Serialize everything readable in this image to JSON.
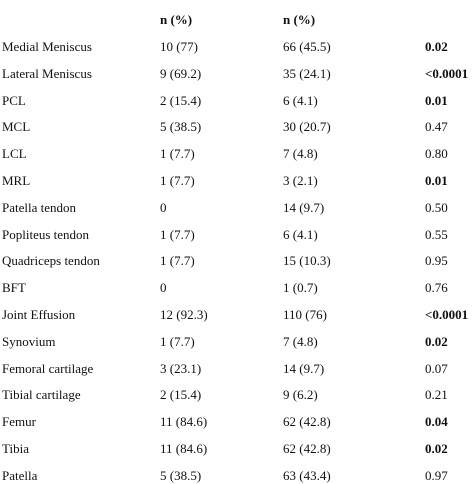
{
  "table": {
    "header": [
      "n (%)",
      "n (%)"
    ],
    "rows": [
      {
        "cells": [
          "Medial Meniscus",
          "10 (77)",
          "66 (45.5)",
          "0.02"
        ],
        "p_bold": true
      },
      {
        "cells": [
          "Lateral Meniscus",
          "9 (69.2)",
          "35 (24.1)",
          "<0.0001"
        ],
        "p_bold": true
      },
      {
        "cells": [
          "PCL",
          "2 (15.4)",
          "6 (4.1)",
          "0.01"
        ],
        "p_bold": true
      },
      {
        "cells": [
          "MCL",
          "5 (38.5)",
          "30 (20.7)",
          "0.47"
        ],
        "p_bold": false
      },
      {
        "cells": [
          "LCL",
          "1 (7.7)",
          "7 (4.8)",
          "0.80"
        ],
        "p_bold": false
      },
      {
        "cells": [
          "MRL",
          "1 (7.7)",
          "3 (2.1)",
          "0.01"
        ],
        "p_bold": true
      },
      {
        "cells": [
          "Patella tendon",
          "0",
          "14 (9.7)",
          "0.50"
        ],
        "p_bold": false
      },
      {
        "cells": [
          "Popliteus tendon",
          "1 (7.7)",
          "6 (4.1)",
          "0.55"
        ],
        "p_bold": false
      },
      {
        "cells": [
          "Quadriceps tendon",
          "1 (7.7)",
          "15 (10.3)",
          "0.95"
        ],
        "p_bold": false
      },
      {
        "cells": [
          "BFT",
          "0",
          "1 (0.7)",
          "0.76"
        ],
        "p_bold": false
      },
      {
        "cells": [
          "Joint Effusion",
          "12 (92.3)",
          "110 (76)",
          "<0.0001"
        ],
        "p_bold": true
      },
      {
        "cells": [
          "Synovium",
          "1 (7.7)",
          "7 (4.8)",
          "0.02"
        ],
        "p_bold": true
      },
      {
        "cells": [
          "Femoral cartilage",
          "3 (23.1)",
          "14 (9.7)",
          "0.07"
        ],
        "p_bold": false
      },
      {
        "cells": [
          "Tibial cartilage",
          "2 (15.4)",
          "9 (6.2)",
          "0.21"
        ],
        "p_bold": false
      },
      {
        "cells": [
          "Femur",
          "11 (84.6)",
          "62 (42.8)",
          "0.04"
        ],
        "p_bold": true
      },
      {
        "cells": [
          "Tibia",
          "11 (84.6)",
          "62 (42.8)",
          "0.02"
        ],
        "p_bold": true
      },
      {
        "cells": [
          "Patella",
          "5 (38.5)",
          "63 (43.4)",
          "0.97"
        ],
        "p_bold": false
      }
    ]
  }
}
